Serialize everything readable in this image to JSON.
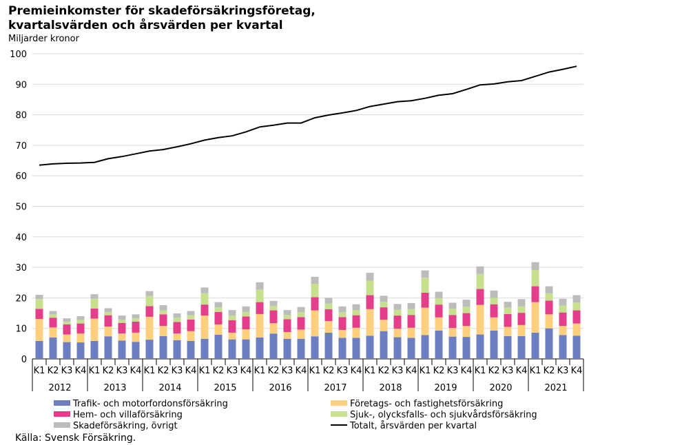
{
  "title_line1": "Premieinkomster för skadeförsäkringsföretag,",
  "title_line2": "kvartalsvärden och årsvärden per kvartal",
  "subtitle": "Miljarder kronor",
  "source": "Källa: Svensk Försäkring.",
  "chart_data": {
    "type": "bar",
    "stacked": true,
    "title": "Premieinkomster för skadeförsäkringsföretag, kvartalsvärden och årsvärden per kvartal",
    "ylabel": "Miljarder kronor",
    "ylim": [
      0,
      100
    ],
    "yticks": [
      0,
      10,
      20,
      30,
      40,
      50,
      60,
      70,
      80,
      90,
      100
    ],
    "grid": true,
    "legend_position": "bottom",
    "quarters": [
      "K1",
      "K2",
      "K3",
      "K4"
    ],
    "years": [
      "2012",
      "2013",
      "2014",
      "2015",
      "2016",
      "2017",
      "2018",
      "2019",
      "2020",
      "2021"
    ],
    "series": [
      {
        "name": "Trafik- och motorfordonsförsäkring",
        "color": "#6b7ec0",
        "values": [
          5.9,
          7.0,
          5.5,
          5.4,
          5.9,
          7.4,
          6.0,
          5.6,
          6.3,
          7.5,
          6.1,
          5.9,
          6.6,
          7.9,
          6.4,
          6.4,
          7.0,
          8.3,
          6.6,
          6.6,
          7.4,
          8.6,
          6.9,
          6.9,
          7.6,
          9.1,
          7.1,
          6.9,
          7.8,
          9.3,
          7.3,
          7.2,
          8.0,
          9.3,
          7.5,
          7.5,
          8.6,
          10.0,
          7.8,
          7.6
        ]
      },
      {
        "name": "Företags- och fastighetsförsäkring",
        "color": "#fcd07e",
        "values": [
          7.2,
          3.3,
          2.5,
          2.9,
          7.3,
          3.2,
          2.3,
          3.0,
          7.5,
          3.3,
          2.2,
          3.2,
          7.6,
          3.4,
          2.2,
          3.3,
          7.7,
          3.4,
          2.2,
          3.0,
          8.5,
          3.8,
          2.6,
          3.3,
          8.7,
          3.7,
          2.8,
          3.3,
          9.0,
          4.3,
          2.8,
          3.6,
          9.7,
          4.3,
          3.0,
          3.6,
          10.0,
          4.6,
          3.0,
          4.0
        ]
      },
      {
        "name": "Hem- och villaförsäkring",
        "color": "#e23e89",
        "values": [
          3.3,
          3.2,
          3.3,
          3.3,
          3.3,
          3.7,
          3.5,
          3.6,
          3.5,
          3.8,
          3.8,
          3.8,
          3.6,
          4.1,
          4.1,
          4.2,
          3.9,
          4.2,
          4.2,
          4.1,
          4.3,
          3.9,
          4.2,
          4.1,
          4.6,
          4.1,
          4.3,
          4.2,
          4.9,
          4.2,
          4.3,
          4.2,
          5.2,
          4.3,
          4.2,
          4.0,
          5.2,
          4.5,
          4.4,
          4.3
        ]
      },
      {
        "name": "Sjuk-, olycksfalls- och sjukvårdsförsäkring",
        "color": "#c6e090",
        "values": [
          3.2,
          1.1,
          0.9,
          1.2,
          3.2,
          1.1,
          1.0,
          1.1,
          3.3,
          1.3,
          1.4,
          1.4,
          3.7,
          1.5,
          1.5,
          1.5,
          4.1,
          1.5,
          1.4,
          1.6,
          4.4,
          1.8,
          1.6,
          1.7,
          4.7,
          1.8,
          1.9,
          1.9,
          4.9,
          2.1,
          2.0,
          2.1,
          4.9,
          2.1,
          2.1,
          2.1,
          5.3,
          2.4,
          2.3,
          2.6
        ]
      },
      {
        "name": "Skadeförsäkring, övrigt",
        "color": "#bcbcbc",
        "values": [
          1.4,
          1.1,
          1.1,
          1.2,
          1.5,
          1.2,
          1.4,
          1.3,
          1.6,
          1.7,
          1.4,
          1.4,
          1.9,
          1.7,
          1.8,
          1.8,
          2.4,
          1.6,
          1.6,
          1.7,
          2.3,
          1.9,
          1.9,
          1.9,
          2.6,
          2.0,
          1.9,
          2.0,
          2.4,
          2.1,
          2.0,
          2.3,
          2.5,
          2.4,
          1.9,
          2.4,
          2.6,
          2.3,
          2.2,
          2.4
        ]
      },
      {
        "name": "Totalt, årsvärden per kvartal",
        "type": "line",
        "color": "#000000",
        "values": [
          63.5,
          63.9,
          64.1,
          64.2,
          64.4,
          65.6,
          66.3,
          67.2,
          68.1,
          68.6,
          69.5,
          70.5,
          71.7,
          72.5,
          73.1,
          74.4,
          76.0,
          76.6,
          77.3,
          77.3,
          79.0,
          79.9,
          80.6,
          81.4,
          82.7,
          83.5,
          84.3,
          84.6,
          85.4,
          86.4,
          86.9,
          88.3,
          89.8,
          90.1,
          90.8,
          91.2,
          92.6,
          94.0,
          94.9,
          95.9
        ]
      }
    ]
  }
}
